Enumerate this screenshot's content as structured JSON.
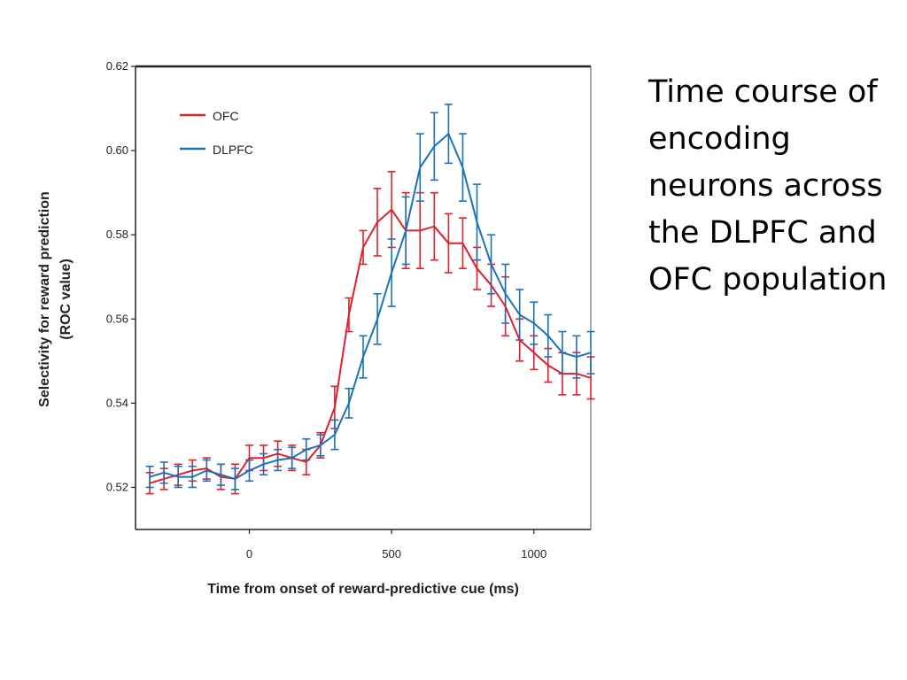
{
  "slide": {
    "side_text": "Time course of encoding neurons across the DLPFC and OFC population"
  },
  "chart_data": {
    "type": "line",
    "title": "",
    "xlabel": "Time from onset of reward-predictive cue (ms)",
    "ylabel": "Selectivity for reward prediction (ROC value)",
    "ylabel_lines": [
      "Selectivity for reward prediction",
      "(ROC value)"
    ],
    "xlim": [
      -400,
      1200
    ],
    "ylim": [
      0.51,
      0.62
    ],
    "x_ticks": [
      0,
      500,
      1000
    ],
    "x_tick_labels": [
      "0",
      "500",
      "1000"
    ],
    "y_ticks": [
      0.52,
      0.54,
      0.56,
      0.58,
      0.6,
      0.62
    ],
    "y_tick_labels": [
      "0.52",
      "0.54",
      "0.56",
      "0.58",
      "0.60",
      "0.62"
    ],
    "grid": false,
    "legend_position": "top-left",
    "x": [
      -350,
      -300,
      -250,
      -200,
      -150,
      -100,
      -50,
      0,
      50,
      100,
      150,
      200,
      250,
      300,
      350,
      400,
      450,
      500,
      550,
      600,
      650,
      700,
      750,
      800,
      850,
      900,
      950,
      1000,
      1050,
      1100,
      1150,
      1200
    ],
    "series": [
      {
        "name": "OFC",
        "color": "#e0202a",
        "values": [
          0.521,
          0.522,
          0.523,
          0.524,
          0.5245,
          0.5225,
          0.522,
          0.527,
          0.527,
          0.528,
          0.527,
          0.526,
          0.53,
          0.539,
          0.561,
          0.577,
          0.583,
          0.586,
          0.581,
          0.581,
          0.582,
          0.578,
          0.578,
          0.572,
          0.568,
          0.563,
          0.555,
          0.552,
          0.549,
          0.547,
          0.547,
          0.546
        ],
        "errors": [
          0.0025,
          0.0025,
          0.0025,
          0.0025,
          0.0025,
          0.003,
          0.0035,
          0.003,
          0.003,
          0.003,
          0.003,
          0.003,
          0.003,
          0.005,
          0.004,
          0.004,
          0.008,
          0.009,
          0.009,
          0.009,
          0.008,
          0.007,
          0.006,
          0.005,
          0.005,
          0.007,
          0.005,
          0.004,
          0.004,
          0.005,
          0.005,
          0.005
        ]
      },
      {
        "name": "DLPFC",
        "color": "#1b72b8",
        "values": [
          0.5225,
          0.5235,
          0.5225,
          0.5225,
          0.524,
          0.523,
          0.522,
          0.524,
          0.5255,
          0.5265,
          0.527,
          0.529,
          0.53,
          0.5325,
          0.54,
          0.551,
          0.56,
          0.571,
          0.581,
          0.596,
          0.601,
          0.604,
          0.596,
          0.583,
          0.573,
          0.566,
          0.561,
          0.559,
          0.556,
          0.552,
          0.551,
          0.552
        ],
        "errors": [
          0.0025,
          0.0025,
          0.0025,
          0.0025,
          0.0025,
          0.0025,
          0.0025,
          0.0025,
          0.0025,
          0.0025,
          0.0025,
          0.0025,
          0.0025,
          0.0035,
          0.0035,
          0.005,
          0.006,
          0.008,
          0.008,
          0.008,
          0.008,
          0.007,
          0.008,
          0.009,
          0.007,
          0.007,
          0.006,
          0.005,
          0.005,
          0.005,
          0.005,
          0.005
        ]
      }
    ]
  }
}
